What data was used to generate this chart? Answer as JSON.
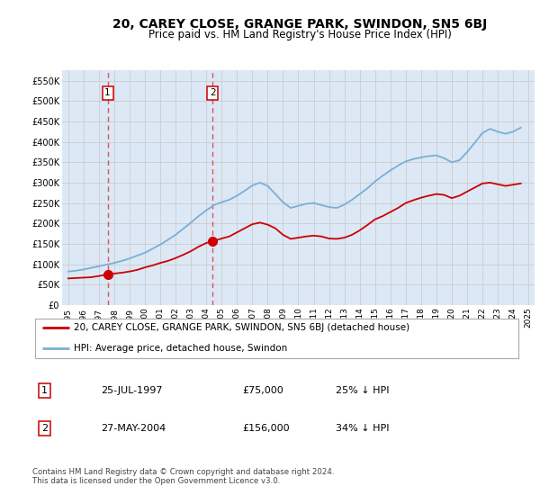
{
  "title": "20, CAREY CLOSE, GRANGE PARK, SWINDON, SN5 6BJ",
  "subtitle": "Price paid vs. HM Land Registry's House Price Index (HPI)",
  "title_fontsize": 10,
  "subtitle_fontsize": 8.5,
  "ylim": [
    0,
    575000
  ],
  "yticks": [
    0,
    50000,
    100000,
    150000,
    200000,
    250000,
    300000,
    350000,
    400000,
    450000,
    500000,
    550000
  ],
  "ytick_labels": [
    "£0",
    "£50K",
    "£100K",
    "£150K",
    "£200K",
    "£250K",
    "£300K",
    "£350K",
    "£400K",
    "£450K",
    "£500K",
    "£550K"
  ],
  "xlim_start": 1994.6,
  "xlim_end": 2025.4,
  "xtick_years": [
    1995,
    1996,
    1997,
    1998,
    1999,
    2000,
    2001,
    2002,
    2003,
    2004,
    2005,
    2006,
    2007,
    2008,
    2009,
    2010,
    2011,
    2012,
    2013,
    2014,
    2015,
    2016,
    2017,
    2018,
    2019,
    2020,
    2021,
    2022,
    2023,
    2024,
    2025
  ],
  "red_line_color": "#cc0000",
  "blue_line_color": "#7aafd4",
  "grid_color": "#cccccc",
  "background_color": "#dce8f5",
  "plot_bg_color": "#ffffff",
  "dashed_line_color": "#dd4444",
  "marker_color": "#cc0000",
  "sale_points": [
    {
      "year": 1997.57,
      "price": 75000,
      "label": "1"
    },
    {
      "year": 2004.41,
      "price": 156000,
      "label": "2"
    }
  ],
  "red_x": [
    1995.0,
    1995.5,
    1996.0,
    1996.5,
    1997.0,
    1997.57,
    1998.0,
    1998.5,
    1999.0,
    1999.5,
    2000.0,
    2000.5,
    2001.0,
    2001.5,
    2002.0,
    2002.5,
    2003.0,
    2003.5,
    2004.0,
    2004.41,
    2005.0,
    2005.5,
    2006.0,
    2006.5,
    2007.0,
    2007.5,
    2008.0,
    2008.5,
    2009.0,
    2009.5,
    2010.0,
    2010.5,
    2011.0,
    2011.5,
    2012.0,
    2012.5,
    2013.0,
    2013.5,
    2014.0,
    2014.5,
    2015.0,
    2015.5,
    2016.0,
    2016.5,
    2017.0,
    2017.5,
    2018.0,
    2018.5,
    2019.0,
    2019.5,
    2020.0,
    2020.5,
    2021.0,
    2021.5,
    2022.0,
    2022.5,
    2023.0,
    2023.5,
    2024.0,
    2024.5
  ],
  "red_y": [
    65000,
    66000,
    67000,
    68000,
    71000,
    75000,
    77000,
    79000,
    82000,
    86000,
    92000,
    97000,
    103000,
    108000,
    115000,
    123000,
    132000,
    143000,
    152000,
    156000,
    163000,
    168000,
    178000,
    188000,
    198000,
    202000,
    197000,
    188000,
    172000,
    162000,
    165000,
    168000,
    170000,
    168000,
    163000,
    162000,
    165000,
    172000,
    183000,
    196000,
    210000,
    218000,
    228000,
    238000,
    250000,
    257000,
    263000,
    268000,
    272000,
    270000,
    262000,
    268000,
    278000,
    288000,
    298000,
    300000,
    296000,
    292000,
    295000,
    298000
  ],
  "blue_x": [
    1995.0,
    1995.5,
    1996.0,
    1996.5,
    1997.0,
    1997.5,
    1998.0,
    1998.5,
    1999.0,
    1999.5,
    2000.0,
    2000.5,
    2001.0,
    2001.5,
    2002.0,
    2002.5,
    2003.0,
    2003.5,
    2004.0,
    2004.5,
    2005.0,
    2005.5,
    2006.0,
    2006.5,
    2007.0,
    2007.5,
    2008.0,
    2008.5,
    2009.0,
    2009.5,
    2010.0,
    2010.5,
    2011.0,
    2011.5,
    2012.0,
    2012.5,
    2013.0,
    2013.5,
    2014.0,
    2014.5,
    2015.0,
    2015.5,
    2016.0,
    2016.5,
    2017.0,
    2017.5,
    2018.0,
    2018.5,
    2019.0,
    2019.5,
    2020.0,
    2020.5,
    2021.0,
    2021.5,
    2022.0,
    2022.5,
    2023.0,
    2023.5,
    2024.0,
    2024.5
  ],
  "blue_y": [
    82000,
    84000,
    87000,
    91000,
    95000,
    99000,
    103000,
    108000,
    114000,
    121000,
    128000,
    138000,
    148000,
    160000,
    172000,
    187000,
    202000,
    218000,
    232000,
    245000,
    252000,
    258000,
    268000,
    280000,
    293000,
    300000,
    292000,
    272000,
    252000,
    238000,
    243000,
    248000,
    250000,
    245000,
    240000,
    238000,
    246000,
    258000,
    272000,
    286000,
    303000,
    317000,
    330000,
    342000,
    352000,
    358000,
    362000,
    365000,
    367000,
    360000,
    350000,
    355000,
    375000,
    398000,
    422000,
    432000,
    425000,
    420000,
    425000,
    435000
  ],
  "legend_label_red": "20, CAREY CLOSE, GRANGE PARK, SWINDON, SN5 6BJ (detached house)",
  "legend_label_blue": "HPI: Average price, detached house, Swindon",
  "footnote": "Contains HM Land Registry data © Crown copyright and database right 2024.\nThis data is licensed under the Open Government Licence v3.0.",
  "table_rows": [
    {
      "num": "1",
      "date": "25-JUL-1997",
      "price": "£75,000",
      "hpi": "25% ↓ HPI"
    },
    {
      "num": "2",
      "date": "27-MAY-2004",
      "price": "£156,000",
      "hpi": "34% ↓ HPI"
    }
  ]
}
